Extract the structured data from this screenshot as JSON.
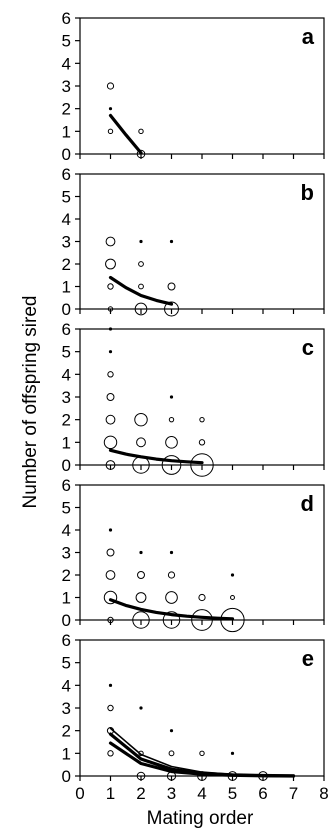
{
  "chart_data": {
    "type": "scatter",
    "xlabel": "Mating order",
    "ylabel": "Number of offspring sired",
    "xlim": [
      0,
      8
    ],
    "ylim": [
      0,
      6
    ],
    "x_ticks": [
      "0",
      "1",
      "2",
      "3",
      "4",
      "5",
      "6",
      "7",
      "8"
    ],
    "y_ticks": [
      "0",
      "1",
      "2",
      "3",
      "4",
      "5",
      "6"
    ],
    "panels": [
      {
        "label": "a",
        "points": [
          {
            "x": 1,
            "y": 3,
            "size": 2
          },
          {
            "x": 1,
            "y": 2,
            "size": 0.5
          },
          {
            "x": 1,
            "y": 1,
            "size": 1
          },
          {
            "x": 2,
            "y": 1,
            "size": 1
          },
          {
            "x": 2,
            "y": 0,
            "size": 3
          }
        ],
        "fits": [
          {
            "x": [
              1,
              1.5,
              2
            ],
            "y": [
              1.7,
              0.85,
              0.05
            ],
            "weight": "thick"
          }
        ]
      },
      {
        "label": "b",
        "points": [
          {
            "x": 1,
            "y": 3,
            "size": 4
          },
          {
            "x": 1,
            "y": 2,
            "size": 5
          },
          {
            "x": 1,
            "y": 1,
            "size": 1.5
          },
          {
            "x": 1,
            "y": 0,
            "size": 1
          },
          {
            "x": 2,
            "y": 3,
            "size": 0.5
          },
          {
            "x": 2,
            "y": 2,
            "size": 1.2
          },
          {
            "x": 2,
            "y": 1,
            "size": 1.2
          },
          {
            "x": 2,
            "y": 0,
            "size": 7
          },
          {
            "x": 3,
            "y": 3,
            "size": 0.5
          },
          {
            "x": 3,
            "y": 1,
            "size": 2.5
          },
          {
            "x": 3,
            "y": 0,
            "size": 10
          }
        ],
        "fits": [
          {
            "x": [
              1,
              1.5,
              2,
              2.5,
              3
            ],
            "y": [
              1.4,
              0.95,
              0.6,
              0.38,
              0.22
            ],
            "weight": "thick"
          }
        ]
      },
      {
        "label": "c",
        "points": [
          {
            "x": 1,
            "y": 6,
            "size": 0.5
          },
          {
            "x": 1,
            "y": 5,
            "size": 0.5
          },
          {
            "x": 1,
            "y": 4,
            "size": 1.5
          },
          {
            "x": 1,
            "y": 3,
            "size": 2.5
          },
          {
            "x": 1,
            "y": 2,
            "size": 4
          },
          {
            "x": 1,
            "y": 1,
            "size": 8
          },
          {
            "x": 1,
            "y": 0,
            "size": 4
          },
          {
            "x": 2,
            "y": 2,
            "size": 8
          },
          {
            "x": 2,
            "y": 1,
            "size": 4
          },
          {
            "x": 2,
            "y": 0,
            "size": 14
          },
          {
            "x": 3,
            "y": 3,
            "size": 0.5
          },
          {
            "x": 3,
            "y": 2,
            "size": 1
          },
          {
            "x": 3,
            "y": 1,
            "size": 7
          },
          {
            "x": 3,
            "y": 0,
            "size": 18
          },
          {
            "x": 4,
            "y": 2,
            "size": 1
          },
          {
            "x": 4,
            "y": 1,
            "size": 1.5
          },
          {
            "x": 4,
            "y": 0,
            "size": 26
          }
        ],
        "fits": [
          {
            "x": [
              1,
              1.5,
              2,
              2.5,
              3,
              3.5,
              4
            ],
            "y": [
              0.65,
              0.48,
              0.36,
              0.26,
              0.19,
              0.14,
              0.1
            ],
            "weight": "thick"
          }
        ]
      },
      {
        "label": "d",
        "points": [
          {
            "x": 1,
            "y": 4,
            "size": 0.5
          },
          {
            "x": 1,
            "y": 3,
            "size": 2.5
          },
          {
            "x": 1,
            "y": 2,
            "size": 4
          },
          {
            "x": 1,
            "y": 1,
            "size": 8
          },
          {
            "x": 1,
            "y": 0,
            "size": 1.5
          },
          {
            "x": 2,
            "y": 3,
            "size": 0.5
          },
          {
            "x": 2,
            "y": 2,
            "size": 2.5
          },
          {
            "x": 2,
            "y": 1,
            "size": 5
          },
          {
            "x": 2,
            "y": 0,
            "size": 14
          },
          {
            "x": 3,
            "y": 3,
            "size": 0.5
          },
          {
            "x": 3,
            "y": 2,
            "size": 2
          },
          {
            "x": 3,
            "y": 1,
            "size": 7
          },
          {
            "x": 3,
            "y": 0,
            "size": 14
          },
          {
            "x": 4,
            "y": 1,
            "size": 2
          },
          {
            "x": 4,
            "y": 0,
            "size": 22
          },
          {
            "x": 5,
            "y": 2,
            "size": 0.5
          },
          {
            "x": 5,
            "y": 1,
            "size": 0.8
          },
          {
            "x": 5,
            "y": 0,
            "size": 28
          }
        ],
        "fits": [
          {
            "x": [
              1,
              1.5,
              2,
              2.5,
              3,
              3.5,
              4,
              4.5,
              5
            ],
            "y": [
              0.9,
              0.65,
              0.47,
              0.34,
              0.24,
              0.17,
              0.12,
              0.08,
              0.05
            ],
            "weight": "thick"
          }
        ]
      },
      {
        "label": "e",
        "points": [
          {
            "x": 1,
            "y": 4,
            "size": 0.5
          },
          {
            "x": 1,
            "y": 3,
            "size": 1.5
          },
          {
            "x": 1,
            "y": 2,
            "size": 2
          },
          {
            "x": 1,
            "y": 1,
            "size": 1.5
          },
          {
            "x": 2,
            "y": 3,
            "size": 0.5
          },
          {
            "x": 2,
            "y": 1,
            "size": 1
          },
          {
            "x": 2,
            "y": 0,
            "size": 3
          },
          {
            "x": 3,
            "y": 2,
            "size": 0.5
          },
          {
            "x": 3,
            "y": 1,
            "size": 1.2
          },
          {
            "x": 3,
            "y": 0,
            "size": 3.5
          },
          {
            "x": 4,
            "y": 1,
            "size": 1
          },
          {
            "x": 4,
            "y": 0,
            "size": 4
          },
          {
            "x": 5,
            "y": 1,
            "size": 0.5
          },
          {
            "x": 5,
            "y": 0,
            "size": 4
          },
          {
            "x": 6,
            "y": 0,
            "size": 4
          },
          {
            "x": 7,
            "y": 0,
            "size": 0.5
          }
        ],
        "fits": [
          {
            "x": [
              1,
              2,
              3,
              4,
              5,
              6,
              7
            ],
            "y": [
              2.1,
              0.95,
              0.42,
              0.17,
              0.07,
              0.03,
              0.01
            ],
            "weight": "thin"
          },
          {
            "x": [
              1,
              2,
              3,
              4,
              5,
              6,
              7
            ],
            "y": [
              1.85,
              0.75,
              0.3,
              0.12,
              0.05,
              0.02,
              0.01
            ],
            "weight": "thick"
          },
          {
            "x": [
              1,
              2,
              3,
              4,
              5,
              6,
              7
            ],
            "y": [
              1.45,
              0.55,
              0.2,
              0.08,
              0.03,
              0.01,
              0.0
            ],
            "weight": "thick"
          }
        ]
      }
    ]
  }
}
